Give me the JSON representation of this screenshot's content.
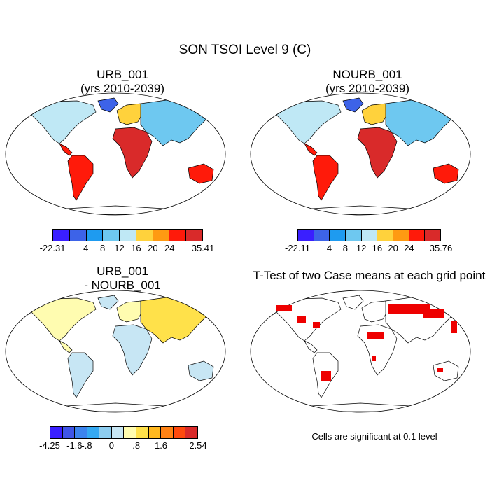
{
  "main_title": "SON TSOI Level 9 (C)",
  "panels": [
    {
      "title_line1": "URB_001",
      "title_line2": "(yrs 2010-2039)"
    },
    {
      "title_line1": "NOURB_001",
      "title_line2": "(yrs 2010-2039)"
    },
    {
      "title_line1": "URB_001",
      "title_line2": "- NOURB_001"
    },
    {
      "title_line1": "T-Test of two Case means at each grid point",
      "title_line2": ""
    }
  ],
  "colorbars": {
    "abs1": {
      "labels": [
        "-22.31",
        "4",
        "8",
        "12",
        "16",
        "20",
        "24",
        "35.41"
      ]
    },
    "abs2": {
      "labels": [
        "-22.11",
        "4",
        "8",
        "12",
        "16",
        "20",
        "24",
        "35.76"
      ]
    },
    "diff": {
      "labels": [
        "-4.25",
        "-1.6",
        "-.8",
        "0",
        ".8",
        "1.6",
        "2.54"
      ]
    }
  },
  "significance_note": "Cells are significant at 0.1 level",
  "colors": {
    "abs_scale": [
      "#3a1fff",
      "#3d63e8",
      "#1e9bf0",
      "#6ec8f0",
      "#bfe8f5",
      "#ffd23c",
      "#ff9a12",
      "#ff1a0a",
      "#d92a2a"
    ],
    "diff_scale": [
      "#3a1fff",
      "#3f55e8",
      "#3c84ee",
      "#35a9f2",
      "#8dcdf0",
      "#c7e6f4",
      "#fffcb0",
      "#ffe14a",
      "#ffb81f",
      "#ff8214",
      "#ff4a0e",
      "#d92a2a"
    ],
    "significant": "#ee0000"
  }
}
